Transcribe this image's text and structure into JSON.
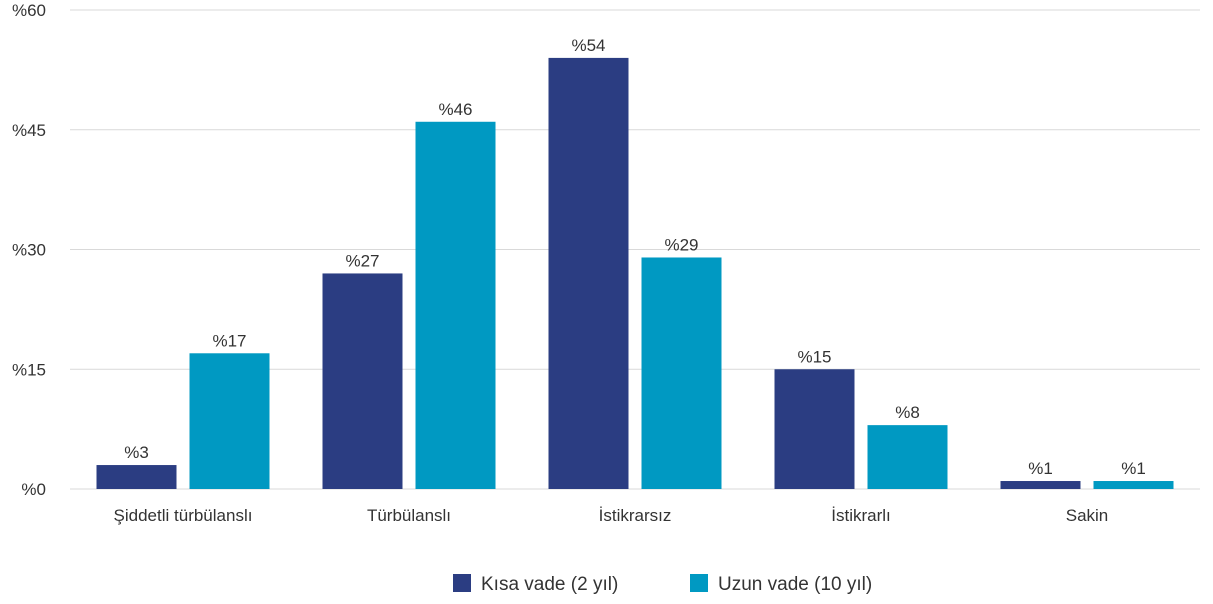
{
  "chart_data": {
    "type": "bar",
    "categories": [
      "Şiddetli türbülanslı",
      "Türbülanslı",
      "İstikrarsız",
      "İstikrarlı",
      "Sakin"
    ],
    "series": [
      {
        "name": "Kısa vade (2 yıl)",
        "values": [
          3,
          27,
          54,
          15,
          1
        ],
        "labels": [
          "%3",
          "%27",
          "%54",
          "%15",
          "%1"
        ],
        "color": "#2b3d82"
      },
      {
        "name": "Uzun vade (10 yıl)",
        "values": [
          17,
          46,
          29,
          8,
          1
        ],
        "labels": [
          "%17",
          "%46",
          "%29",
          "%8",
          "%1"
        ],
        "color": "#0099c2"
      }
    ],
    "yticks": [
      0,
      15,
      30,
      45,
      60
    ],
    "ytick_labels": [
      "%0",
      "%15",
      "%30",
      "%45",
      "%60"
    ],
    "ylim": [
      0,
      60
    ],
    "grid": true,
    "gridColor": "#d9d9d9",
    "legend_position": "bottom"
  }
}
